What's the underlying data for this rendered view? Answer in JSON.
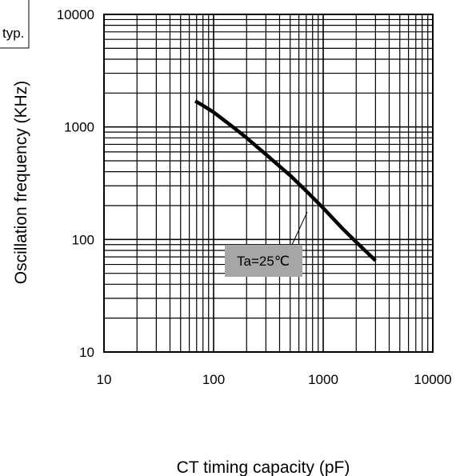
{
  "chart_data": {
    "type": "line",
    "title": "",
    "note": "typ.",
    "xlabel": "CT timing capacity (pF)",
    "ylabel": "Oscillation frequency (KHz)",
    "xscale": "log",
    "yscale": "log",
    "xlim": [
      10,
      10000
    ],
    "ylim": [
      10,
      10000
    ],
    "grid": true,
    "x_tick_labels": [
      "10",
      "100",
      "1000",
      "10000"
    ],
    "y_tick_labels": [
      "10",
      "100",
      "1000",
      "10000"
    ],
    "series": [
      {
        "x": [
          68,
          80,
          100,
          150,
          200,
          300,
          500,
          700,
          1000,
          1500,
          2000,
          3000
        ],
        "y": [
          1700,
          1550,
          1350,
          1000,
          800,
          570,
          370,
          270,
          190,
          125,
          95,
          65
        ]
      }
    ],
    "annotations": [
      {
        "text": "Ta=25℃",
        "x": 1000,
        "y": 200,
        "background": "#a6a6a6"
      }
    ]
  }
}
